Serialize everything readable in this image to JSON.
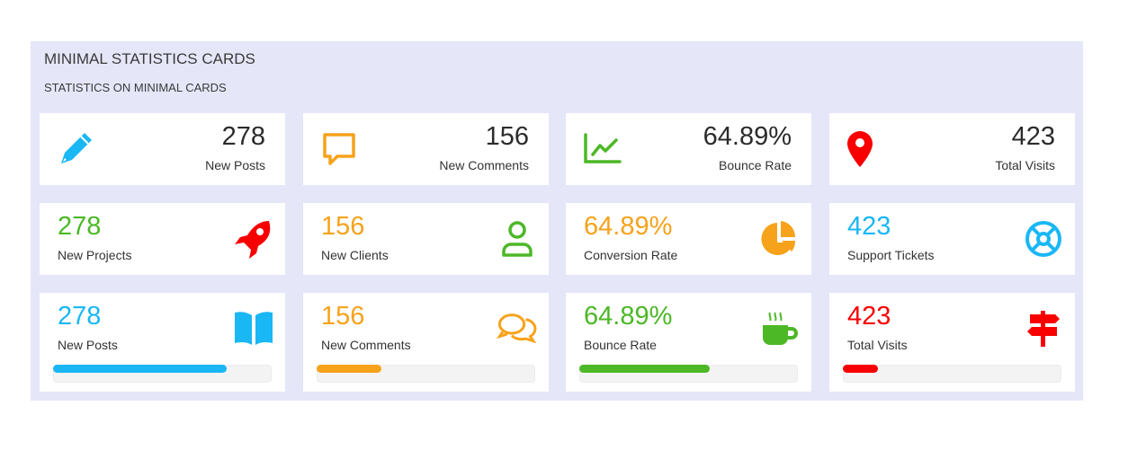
{
  "header": {
    "title": "MINIMAL STATISTICS CARDS",
    "subtitle": "STATISTICS ON MINIMAL CARDS"
  },
  "colors": {
    "blue": "#1ab7f5",
    "orange": "#f7a21b",
    "green": "#4cb826",
    "red": "#f90000"
  },
  "row1": [
    {
      "value": "278",
      "label": "New Posts",
      "icon": "pencil-icon"
    },
    {
      "value": "156",
      "label": "New Comments",
      "icon": "speech-bubble-icon"
    },
    {
      "value": "64.89%",
      "label": "Bounce Rate",
      "icon": "line-chart-icon"
    },
    {
      "value": "423",
      "label": "Total Visits",
      "icon": "map-pin-icon"
    }
  ],
  "row2": [
    {
      "value": "278",
      "label": "New Projects",
      "icon": "rocket-icon"
    },
    {
      "value": "156",
      "label": "New Clients",
      "icon": "user-icon"
    },
    {
      "value": "64.89%",
      "label": "Conversion Rate",
      "icon": "pie-chart-icon"
    },
    {
      "value": "423",
      "label": "Support Tickets",
      "icon": "life-ring-icon"
    }
  ],
  "row3": [
    {
      "value": "278",
      "label": "New Posts",
      "icon": "book-icon",
      "progress": 80
    },
    {
      "value": "156",
      "label": "New Comments",
      "icon": "comments-icon",
      "progress": 30
    },
    {
      "value": "64.89%",
      "label": "Bounce Rate",
      "icon": "coffee-icon",
      "progress": 60
    },
    {
      "value": "423",
      "label": "Total Visits",
      "icon": "signpost-icon",
      "progress": 16
    }
  ]
}
